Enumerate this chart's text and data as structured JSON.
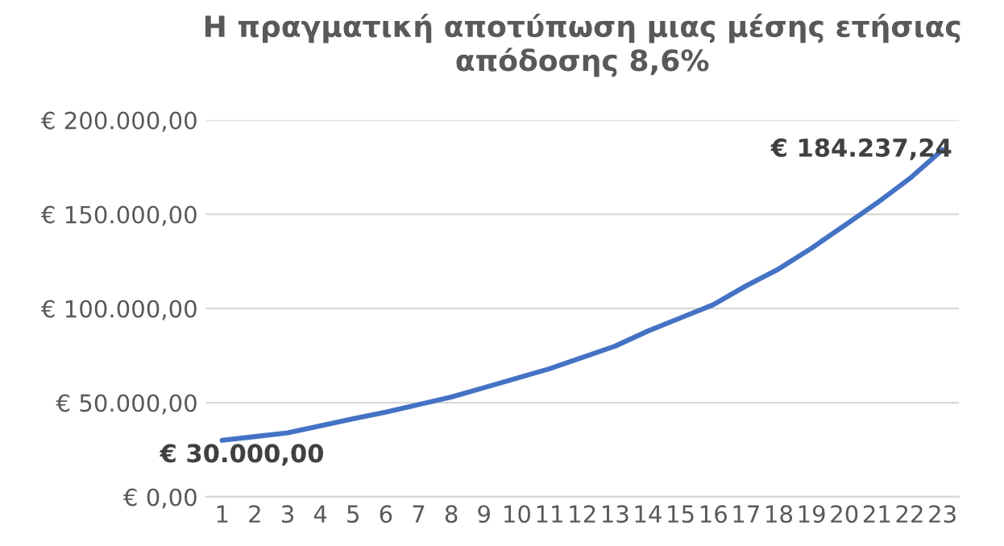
{
  "chart_data": {
    "type": "line",
    "title": "Η πραγματική αποτύπωση μιας μέσης ετήσιας\nαπόδοσης 8,6%",
    "categories": [
      "1",
      "2",
      "3",
      "4",
      "5",
      "6",
      "7",
      "8",
      "9",
      "10",
      "11",
      "12",
      "13",
      "14",
      "15",
      "16",
      "17",
      "18",
      "19",
      "20",
      "21",
      "22",
      "23"
    ],
    "series": [
      {
        "color": "#4472c4",
        "values": [
          30000,
          32000,
          34000,
          37700,
          41500,
          45000,
          49000,
          53000,
          58000,
          63000,
          68000,
          74000,
          80000,
          88000,
          95000,
          102000,
          112000,
          121000,
          132000,
          144000,
          156000,
          169000,
          184237.24
        ],
        "value_labels": [
          "€ 30.000,00",
          null,
          null,
          null,
          null,
          null,
          null,
          null,
          null,
          null,
          null,
          null,
          null,
          null,
          null,
          null,
          null,
          null,
          null,
          null,
          null,
          null,
          "€ 184.237,24"
        ]
      }
    ],
    "ylim": [
      0,
      200000
    ],
    "yticks": [
      {
        "value": 0,
        "label": "€ 0,00"
      },
      {
        "value": 50000,
        "label": "€ 50.000,00"
      },
      {
        "value": 100000,
        "label": "€ 100.000,00"
      },
      {
        "value": 150000,
        "label": "€ 150.000,00"
      },
      {
        "value": 200000,
        "label": "€ 200.000,00"
      }
    ],
    "grid": "y",
    "legend": false,
    "marker": "none",
    "line_style": "solid"
  }
}
